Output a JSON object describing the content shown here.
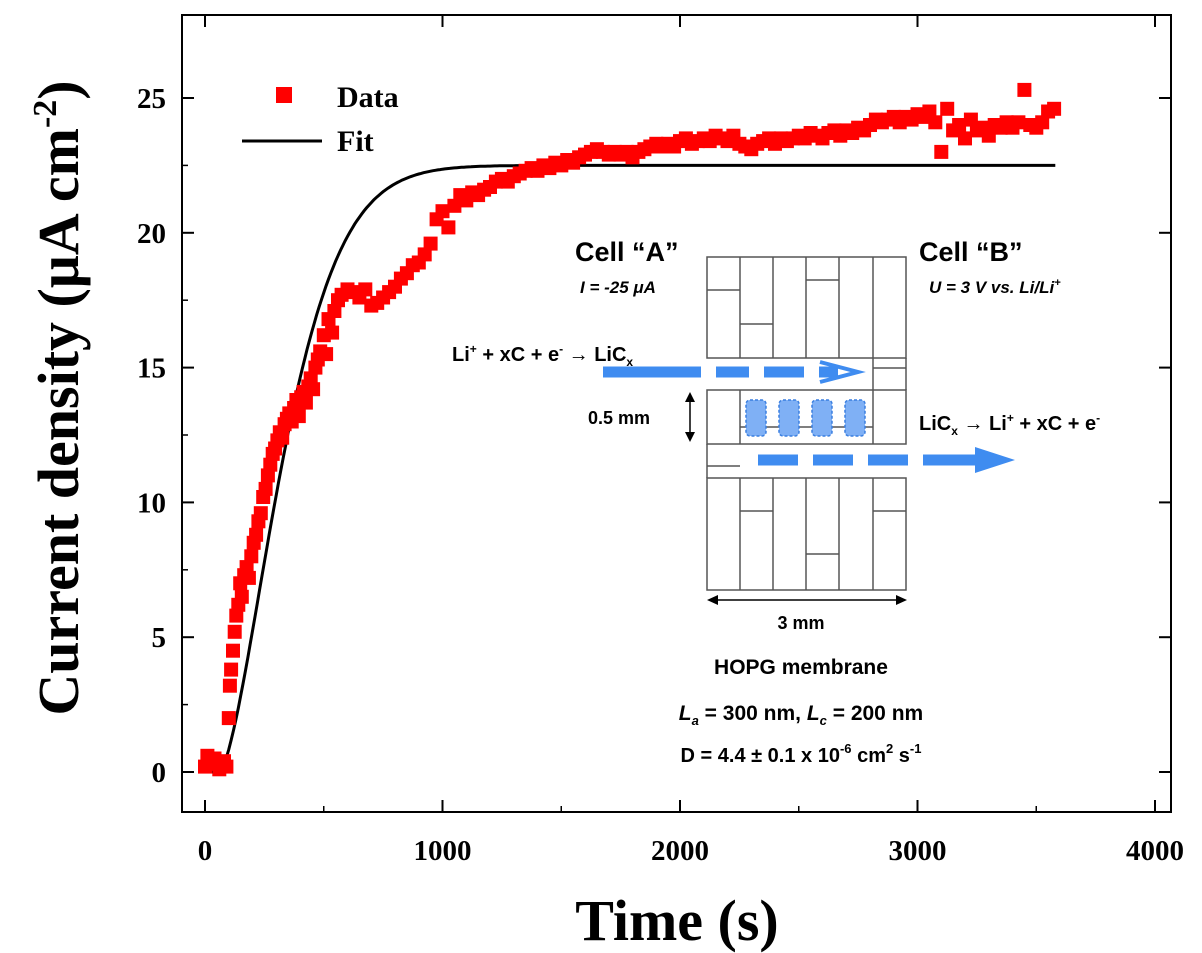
{
  "chart_data": {
    "type": "scatter",
    "xlabel": "Time (s)",
    "ylabel": "Current density (μA cm",
    "ylabel_sup": "-2",
    "ylabel_close": ")",
    "xlim": [
      0,
      4000
    ],
    "ylim": [
      -1.5,
      28
    ],
    "x_ticks": [
      0,
      1000,
      2000,
      3000,
      4000
    ],
    "y_ticks": [
      0,
      5,
      10,
      15,
      20,
      25
    ],
    "x_tick_labels": [
      "0",
      "1000",
      "2000",
      "3000",
      "4000"
    ],
    "y_tick_labels": [
      "0",
      "5",
      "10",
      "15",
      "20",
      "25"
    ],
    "legend_position": "top-left",
    "series": [
      {
        "name": "Data",
        "style": "square-marker",
        "color": "#ff0000",
        "points": [
          [
            0,
            0.2
          ],
          [
            10,
            0.6
          ],
          [
            20,
            0.3
          ],
          [
            40,
            0.5
          ],
          [
            60,
            0.1
          ],
          [
            80,
            0.4
          ],
          [
            90,
            0.2
          ],
          [
            100,
            2.0
          ],
          [
            105,
            3.2
          ],
          [
            110,
            3.8
          ],
          [
            118,
            4.5
          ],
          [
            125,
            5.2
          ],
          [
            132,
            5.8
          ],
          [
            140,
            6.2
          ],
          [
            148,
            7.0
          ],
          [
            155,
            6.5
          ],
          [
            165,
            7.3
          ],
          [
            175,
            7.6
          ],
          [
            185,
            7.2
          ],
          [
            195,
            8.0
          ],
          [
            205,
            8.5
          ],
          [
            215,
            8.8
          ],
          [
            225,
            9.3
          ],
          [
            235,
            9.6
          ],
          [
            245,
            10.2
          ],
          [
            255,
            10.5
          ],
          [
            265,
            11.0
          ],
          [
            275,
            11.4
          ],
          [
            285,
            11.8
          ],
          [
            295,
            12.0
          ],
          [
            305,
            12.3
          ],
          [
            315,
            12.6
          ],
          [
            325,
            12.4
          ],
          [
            335,
            12.9
          ],
          [
            345,
            13.1
          ],
          [
            355,
            13.3
          ],
          [
            365,
            13.0
          ],
          [
            375,
            13.5
          ],
          [
            385,
            13.8
          ],
          [
            395,
            13.2
          ],
          [
            405,
            13.9
          ],
          [
            415,
            14.1
          ],
          [
            425,
            13.7
          ],
          [
            435,
            14.3
          ],
          [
            445,
            14.6
          ],
          [
            455,
            14.2
          ],
          [
            465,
            15.0
          ],
          [
            475,
            15.3
          ],
          [
            485,
            15.6
          ],
          [
            500,
            16.2
          ],
          [
            510,
            15.5
          ],
          [
            520,
            16.8
          ],
          [
            535,
            16.3
          ],
          [
            545,
            17.1
          ],
          [
            560,
            17.5
          ],
          [
            575,
            17.7
          ],
          [
            600,
            17.9
          ],
          [
            625,
            17.8
          ],
          [
            650,
            17.6
          ],
          [
            675,
            17.9
          ],
          [
            700,
            17.3
          ],
          [
            725,
            17.4
          ],
          [
            750,
            17.6
          ],
          [
            775,
            17.8
          ],
          [
            800,
            18.0
          ],
          [
            825,
            18.3
          ],
          [
            850,
            18.5
          ],
          [
            875,
            18.8
          ],
          [
            900,
            18.9
          ],
          [
            925,
            19.2
          ],
          [
            950,
            19.6
          ],
          [
            975,
            20.5
          ],
          [
            1000,
            20.8
          ],
          [
            1025,
            20.2
          ],
          [
            1050,
            21.0
          ],
          [
            1075,
            21.4
          ],
          [
            1100,
            21.2
          ],
          [
            1125,
            21.5
          ],
          [
            1150,
            21.4
          ],
          [
            1175,
            21.6
          ],
          [
            1200,
            21.7
          ],
          [
            1225,
            21.9
          ],
          [
            1250,
            22.0
          ],
          [
            1275,
            21.9
          ],
          [
            1300,
            22.1
          ],
          [
            1325,
            22.2
          ],
          [
            1350,
            22.3
          ],
          [
            1375,
            22.4
          ],
          [
            1400,
            22.3
          ],
          [
            1425,
            22.5
          ],
          [
            1450,
            22.4
          ],
          [
            1475,
            22.6
          ],
          [
            1500,
            22.5
          ],
          [
            1525,
            22.7
          ],
          [
            1550,
            22.6
          ],
          [
            1575,
            22.8
          ],
          [
            1600,
            22.9
          ],
          [
            1625,
            23.0
          ],
          [
            1650,
            23.1
          ],
          [
            1675,
            23.0
          ],
          [
            1700,
            22.9
          ],
          [
            1725,
            23.0
          ],
          [
            1750,
            22.9
          ],
          [
            1775,
            23.0
          ],
          [
            1800,
            22.8
          ],
          [
            1825,
            23.0
          ],
          [
            1850,
            23.1
          ],
          [
            1875,
            23.2
          ],
          [
            1900,
            23.3
          ],
          [
            1925,
            23.2
          ],
          [
            1950,
            23.3
          ],
          [
            1975,
            23.2
          ],
          [
            2000,
            23.4
          ],
          [
            2025,
            23.5
          ],
          [
            2050,
            23.3
          ],
          [
            2075,
            23.4
          ],
          [
            2100,
            23.5
          ],
          [
            2125,
            23.4
          ],
          [
            2150,
            23.6
          ],
          [
            2175,
            23.5
          ],
          [
            2200,
            23.4
          ],
          [
            2225,
            23.6
          ],
          [
            2250,
            23.3
          ],
          [
            2275,
            23.2
          ],
          [
            2300,
            23.1
          ],
          [
            2325,
            23.3
          ],
          [
            2350,
            23.4
          ],
          [
            2375,
            23.5
          ],
          [
            2400,
            23.3
          ],
          [
            2425,
            23.5
          ],
          [
            2450,
            23.4
          ],
          [
            2475,
            23.5
          ],
          [
            2500,
            23.6
          ],
          [
            2525,
            23.5
          ],
          [
            2550,
            23.7
          ],
          [
            2575,
            23.6
          ],
          [
            2600,
            23.5
          ],
          [
            2625,
            23.7
          ],
          [
            2650,
            23.8
          ],
          [
            2675,
            23.6
          ],
          [
            2700,
            23.8
          ],
          [
            2725,
            23.7
          ],
          [
            2750,
            23.9
          ],
          [
            2775,
            23.8
          ],
          [
            2800,
            24.0
          ],
          [
            2825,
            24.2
          ],
          [
            2850,
            24.1
          ],
          [
            2875,
            24.2
          ],
          [
            2900,
            24.3
          ],
          [
            2925,
            24.1
          ],
          [
            2950,
            24.3
          ],
          [
            2975,
            24.2
          ],
          [
            3000,
            24.4
          ],
          [
            3025,
            24.3
          ],
          [
            3050,
            24.5
          ],
          [
            3075,
            24.1
          ],
          [
            3100,
            23.0
          ],
          [
            3125,
            24.6
          ],
          [
            3150,
            23.8
          ],
          [
            3175,
            24.0
          ],
          [
            3200,
            23.5
          ],
          [
            3225,
            24.2
          ],
          [
            3250,
            23.8
          ],
          [
            3275,
            23.9
          ],
          [
            3300,
            23.6
          ],
          [
            3325,
            24.0
          ],
          [
            3350,
            23.9
          ],
          [
            3375,
            24.1
          ],
          [
            3400,
            23.9
          ],
          [
            3425,
            24.1
          ],
          [
            3450,
            25.3
          ],
          [
            3475,
            24.0
          ],
          [
            3500,
            23.9
          ],
          [
            3525,
            24.1
          ],
          [
            3550,
            24.5
          ],
          [
            3575,
            24.6
          ]
        ]
      },
      {
        "name": "Fit",
        "style": "line",
        "color": "#000000",
        "asymptote": 22.5,
        "x_range": [
          0,
          3580
        ]
      }
    ]
  },
  "inset": {
    "cell_a_title": "Cell “A”",
    "cell_a_condition": "I = -25 μA",
    "cell_b_title": "Cell “B”",
    "cell_b_condition": "U = 3 V vs. Li/Li",
    "cell_b_condition_sup": "+",
    "reaction_a_pre": "Li",
    "reaction_a_sup": "+",
    "reaction_a_mid": " + xC + e",
    "reaction_a_sup2": "-",
    "reaction_a_arrow": " → ",
    "reaction_a_product": "LiC",
    "reaction_a_sub": "x",
    "reaction_b_pre": "LiC",
    "reaction_b_sub": "x",
    "reaction_b_arrow": " → ",
    "reaction_b_mid": "Li",
    "reaction_b_sup": "+",
    "reaction_b_post": " + xC + e",
    "reaction_b_sup2": "-",
    "thickness_label": "0.5 mm",
    "width_label": "3 mm",
    "membrane_label": "HOPG membrane",
    "la_label": "L",
    "la_sub": "a",
    "la_value": " = 300 nm, ",
    "lc_label": "L",
    "lc_sub": "c",
    "lc_value": " = 200 nm",
    "diffusion_pre": "D = 4.4 ± 0.1 x 10",
    "diffusion_exp": "-6",
    "diffusion_mid": " cm",
    "diffusion_exp2": "2",
    "diffusion_mid2": " s",
    "diffusion_exp3": "-1",
    "arrow_color": "#3f8cf0"
  }
}
